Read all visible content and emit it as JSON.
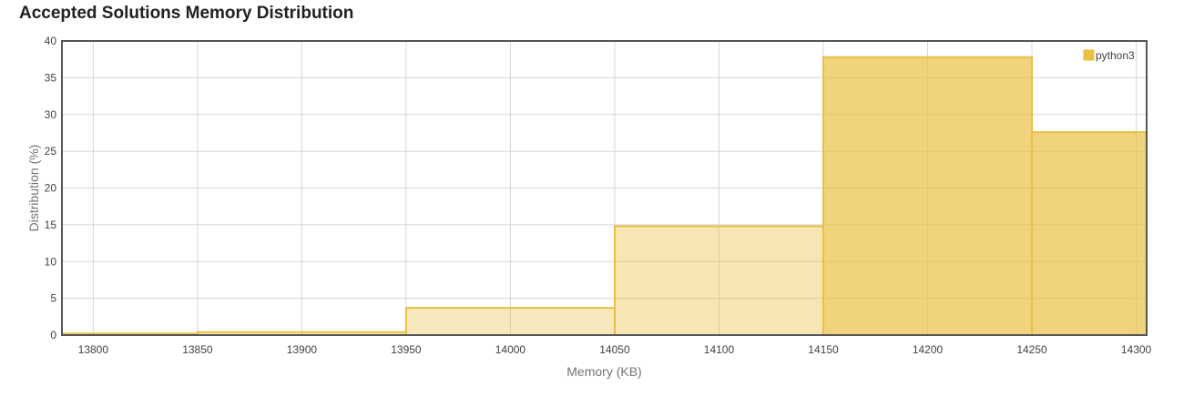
{
  "chart_data": {
    "type": "bar",
    "title": "Accepted Solutions Memory Distribution",
    "xlabel": "Memory (KB)",
    "ylabel": "Distribution (%)",
    "xlim": [
      13785,
      14305
    ],
    "ylim": [
      0,
      40
    ],
    "x_ticks": [
      13800,
      13850,
      13900,
      13950,
      14000,
      14050,
      14100,
      14150,
      14200,
      14250,
      14300
    ],
    "y_ticks": [
      0,
      5,
      10,
      15,
      20,
      25,
      30,
      35,
      40
    ],
    "grid": true,
    "legend_position": "top-right",
    "series": [
      {
        "name": "python3",
        "color": "#e9c044",
        "bins": [
          {
            "x0": 13785,
            "x1": 13850,
            "value": 0.2,
            "opacity": 0.35
          },
          {
            "x0": 13850,
            "x1": 13950,
            "value": 0.4,
            "opacity": 0.35
          },
          {
            "x0": 13950,
            "x1": 14050,
            "value": 3.7,
            "opacity": 0.35
          },
          {
            "x0": 14050,
            "x1": 14150,
            "value": 14.8,
            "opacity": 0.4
          },
          {
            "x0": 14150,
            "x1": 14250,
            "value": 37.8,
            "opacity": 0.7
          },
          {
            "x0": 14250,
            "x1": 14305,
            "value": 27.6,
            "opacity": 0.7
          }
        ]
      }
    ]
  }
}
